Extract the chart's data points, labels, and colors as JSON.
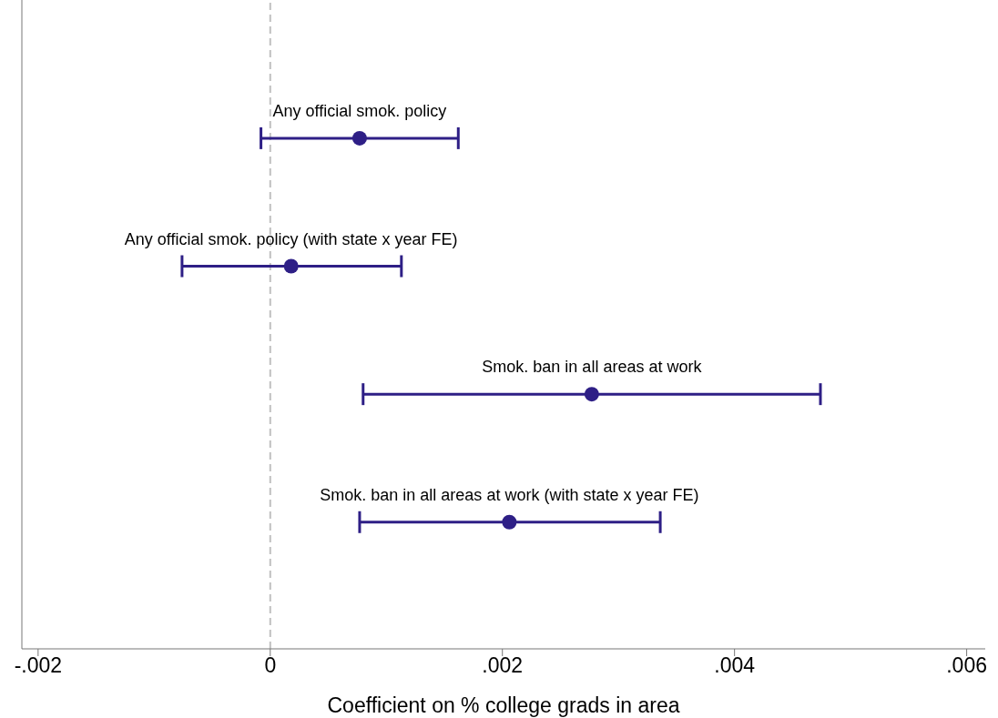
{
  "chart_data": {
    "type": "scatter",
    "orientation": "horizontal",
    "xlabel": "Coefficient on % college grads in area",
    "categories": [
      "Any official smok. policy",
      "Any official smok. policy (with state x year FE)",
      "Smok. ban in all areas at work",
      "Smok. ban in all areas at work (with state x year FE)"
    ],
    "values": [
      0.00077,
      0.00018,
      0.00277,
      0.00206
    ],
    "errors": [
      [
        -8e-05,
        0.00162
      ],
      [
        -0.00076,
        0.00113
      ],
      [
        0.0008,
        0.00474
      ],
      [
        0.00077,
        0.00336
      ]
    ],
    "color": "#2e1f86",
    "marker": "circle",
    "xlim": [
      -0.00214,
      0.00616
    ],
    "xticks": [
      {
        "value": -0.002,
        "label": "-.002"
      },
      0,
      {
        "value": 0.002,
        "label": ".002"
      },
      {
        "value": 0.004,
        "label": ".004"
      },
      {
        "value": 0.006,
        "label": ".006"
      }
    ],
    "ref_lines": [
      {
        "axis": "x",
        "value": 0,
        "color": "#c0c0c0",
        "line_style": "dashed"
      }
    ],
    "grid": false,
    "tick_labels": "x"
  }
}
